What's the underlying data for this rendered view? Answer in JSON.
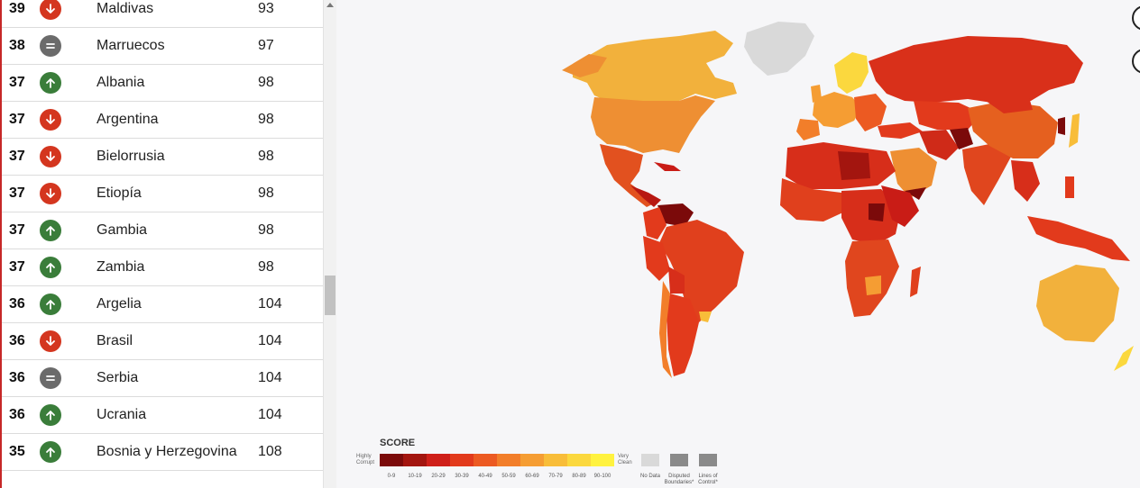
{
  "ranking_list": [
    {
      "score": "39",
      "trend": "down",
      "country": "Maldivas",
      "rank": "93"
    },
    {
      "score": "38",
      "trend": "same",
      "country": "Marruecos",
      "rank": "97"
    },
    {
      "score": "37",
      "trend": "up",
      "country": "Albania",
      "rank": "98"
    },
    {
      "score": "37",
      "trend": "down",
      "country": "Argentina",
      "rank": "98"
    },
    {
      "score": "37",
      "trend": "down",
      "country": "Bielorrusia",
      "rank": "98"
    },
    {
      "score": "37",
      "trend": "down",
      "country": "Etiopía",
      "rank": "98"
    },
    {
      "score": "37",
      "trend": "up",
      "country": "Gambia",
      "rank": "98"
    },
    {
      "score": "37",
      "trend": "up",
      "country": "Zambia",
      "rank": "98"
    },
    {
      "score": "36",
      "trend": "up",
      "country": "Argelia",
      "rank": "104"
    },
    {
      "score": "36",
      "trend": "down",
      "country": "Brasil",
      "rank": "104"
    },
    {
      "score": "36",
      "trend": "same",
      "country": "Serbia",
      "rank": "104"
    },
    {
      "score": "36",
      "trend": "up",
      "country": "Ucrania",
      "rank": "104"
    },
    {
      "score": "35",
      "trend": "up",
      "country": "Bosnia y Herzegovina",
      "rank": "108"
    }
  ],
  "legend": {
    "title": "SCORE",
    "low_label_1": "Highly",
    "low_label_2": "Corrupt",
    "high_label_1": "Very",
    "high_label_2": "Clean",
    "ranges": [
      "0-9",
      "10-19",
      "20-29",
      "30-39",
      "40-49",
      "50-59",
      "60-69",
      "70-79",
      "80-89",
      "90-100"
    ],
    "range_colors": [
      "#7b0a0a",
      "#a3150f",
      "#cf1f19",
      "#e23a1c",
      "#ec5a22",
      "#f27e2a",
      "#f59d33",
      "#f8bd39",
      "#fbd83e",
      "#fff23f"
    ],
    "no_data_label": "No Data",
    "disputed_label_1": "Disputed",
    "disputed_label_2": "Boundaries*",
    "lines_label_1": "Lines of",
    "lines_label_2": "Control*"
  },
  "colors": {
    "no_data": "#d9d9d9",
    "box_gray": "#8a8a8a",
    "trend_down": "#d4361f",
    "trend_up": "#3a7d3a",
    "trend_same": "#6b6b6b"
  }
}
